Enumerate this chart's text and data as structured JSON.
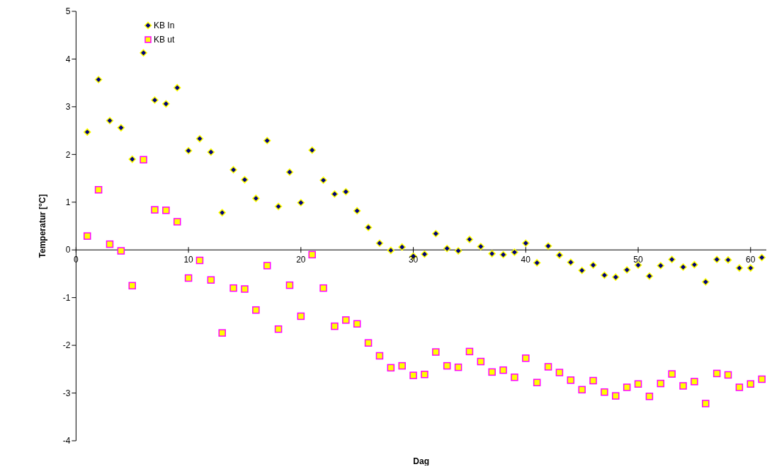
{
  "chart_data": {
    "type": "scatter",
    "xlabel": "Dag",
    "ylabel": "Temperatur [°C]",
    "legend": "top left",
    "grid": false,
    "x": [
      1,
      2,
      3,
      4,
      5,
      6,
      7,
      8,
      9,
      10,
      11,
      12,
      13,
      14,
      15,
      16,
      17,
      18,
      19,
      20,
      21,
      22,
      23,
      24,
      25,
      26,
      27,
      28,
      29,
      30,
      31,
      32,
      33,
      34,
      35,
      36,
      37,
      38,
      39,
      40,
      41,
      42,
      43,
      44,
      45,
      46,
      47,
      48,
      49,
      50,
      51,
      52,
      53,
      54,
      55,
      56,
      57,
      58,
      59,
      60,
      61
    ],
    "xlim": [
      0,
      61.4
    ],
    "xticks": [
      0,
      10,
      20,
      30,
      40,
      50,
      60
    ],
    "ylim": [
      -4,
      5
    ],
    "yticks": [
      -4,
      -3,
      -2,
      -1,
      0,
      1,
      2,
      3,
      4,
      5
    ],
    "series": [
      {
        "name": "KB In",
        "color": "#000080",
        "marker": "diamond",
        "values": [
          2.47,
          3.57,
          2.71,
          2.56,
          1.9,
          4.13,
          3.14,
          3.06,
          3.4,
          2.08,
          2.33,
          2.05,
          0.78,
          1.68,
          1.47,
          1.08,
          2.29,
          0.91,
          1.63,
          0.99,
          2.09,
          1.46,
          1.17,
          1.22,
          0.82,
          0.47,
          0.14,
          -0.01,
          0.06,
          -0.13,
          -0.09,
          0.34,
          0.03,
          -0.02,
          0.22,
          0.07,
          -0.08,
          -0.1,
          -0.05,
          0.14,
          -0.27,
          0.08,
          -0.11,
          -0.26,
          -0.43,
          -0.32,
          -0.53,
          -0.57,
          -0.42,
          -0.32,
          -0.55,
          -0.33,
          -0.2,
          -0.36,
          -0.31,
          -0.67,
          -0.2,
          -0.21,
          -0.38,
          -0.38,
          -0.16
        ]
      },
      {
        "name": "KB ut",
        "color": "#ff00ff",
        "marker": "square",
        "values": [
          0.29,
          1.26,
          0.12,
          -0.02,
          -0.75,
          1.89,
          0.84,
          0.83,
          0.59,
          -0.59,
          -0.22,
          -0.63,
          -1.74,
          -0.8,
          -0.82,
          -1.26,
          -0.33,
          -1.66,
          -0.74,
          -1.39,
          -0.1,
          -0.8,
          -1.6,
          -1.47,
          -1.55,
          -1.95,
          -2.22,
          -2.47,
          -2.43,
          -2.63,
          -2.61,
          -2.14,
          -2.43,
          -2.46,
          -2.13,
          -2.34,
          -2.56,
          -2.52,
          -2.67,
          -2.27,
          -2.78,
          -2.45,
          -2.57,
          -2.73,
          -2.93,
          -2.74,
          -2.98,
          -3.06,
          -2.88,
          -2.81,
          -3.07,
          -2.8,
          -2.6,
          -2.85,
          -2.76,
          -3.22,
          -2.59,
          -2.62,
          -2.88,
          -2.81,
          -2.71
        ]
      }
    ]
  }
}
